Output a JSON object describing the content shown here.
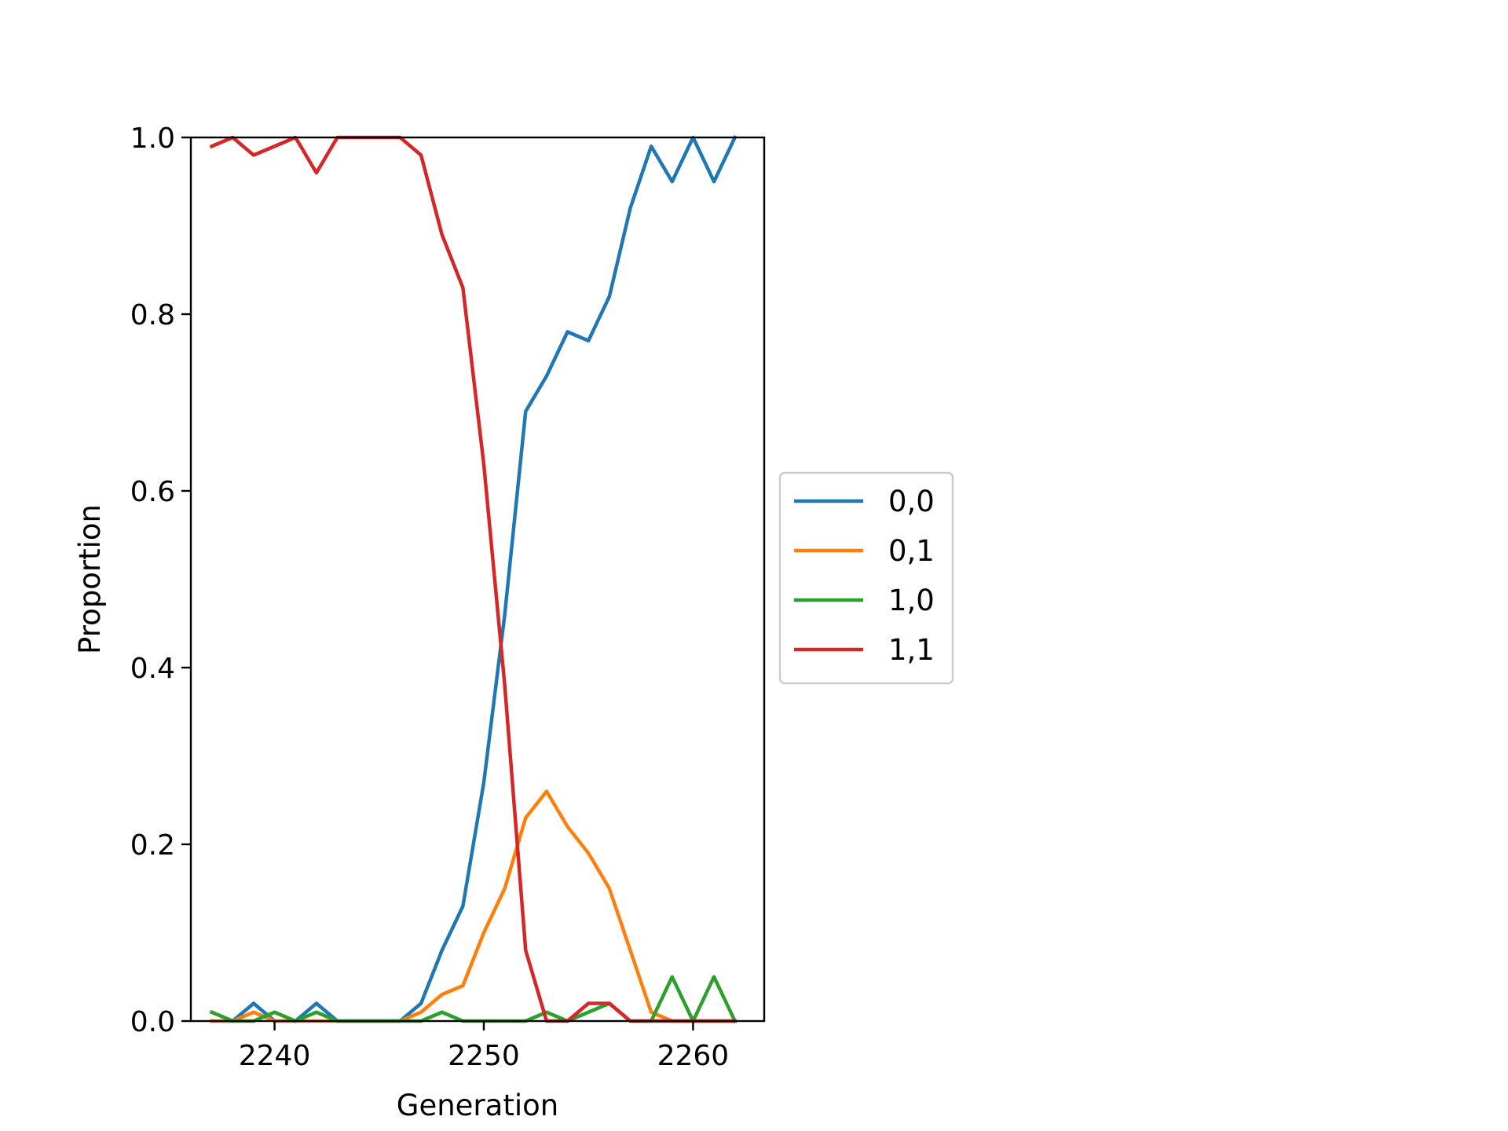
{
  "chart_data": {
    "type": "line",
    "title": "",
    "xlabel": "Generation",
    "ylabel": "Proportion",
    "xlim": [
      2236.0,
      2263.4
    ],
    "ylim": [
      0.0,
      1.0
    ],
    "xticks": [
      2240,
      2250,
      2260
    ],
    "xtick_labels": [
      "2240",
      "2250",
      "2260"
    ],
    "yticks": [
      0.0,
      0.2,
      0.4,
      0.6,
      0.8,
      1.0
    ],
    "ytick_labels": [
      "0.0",
      "0.2",
      "0.4",
      "0.6",
      "0.8",
      "1.0"
    ],
    "grid": false,
    "legend_position": "outside right, vertically centered",
    "x": [
      2237,
      2238,
      2239,
      2240,
      2241,
      2242,
      2243,
      2244,
      2245,
      2246,
      2247,
      2248,
      2249,
      2250,
      2251,
      2252,
      2253,
      2254,
      2255,
      2256,
      2257,
      2258,
      2259,
      2260,
      2261,
      2262
    ],
    "series": [
      {
        "name": "0,0",
        "color": "#1f77b4",
        "values": [
          0.0,
          0.0,
          0.02,
          0.0,
          0.0,
          0.02,
          0.0,
          0.0,
          0.0,
          0.0,
          0.02,
          0.08,
          0.13,
          0.27,
          0.46,
          0.69,
          0.73,
          0.78,
          0.77,
          0.82,
          0.92,
          0.99,
          0.95,
          1.0,
          0.95,
          1.0
        ]
      },
      {
        "name": "0,1",
        "color": "#ff7f0e",
        "values": [
          0.0,
          0.0,
          0.01,
          0.0,
          0.0,
          0.0,
          0.0,
          0.0,
          0.0,
          0.0,
          0.01,
          0.03,
          0.04,
          0.1,
          0.15,
          0.23,
          0.26,
          0.22,
          0.19,
          0.15,
          0.08,
          0.01,
          0.0,
          0.0,
          0.0,
          0.0
        ]
      },
      {
        "name": "1,0",
        "color": "#2ca02c",
        "values": [
          0.01,
          0.0,
          0.0,
          0.01,
          0.0,
          0.01,
          0.0,
          0.0,
          0.0,
          0.0,
          0.0,
          0.01,
          0.0,
          0.0,
          0.0,
          0.0,
          0.01,
          0.0,
          0.01,
          0.02,
          0.0,
          0.0,
          0.05,
          0.0,
          0.05,
          0.0
        ]
      },
      {
        "name": "1,1",
        "color": "#d62728",
        "values": [
          0.99,
          1.0,
          0.98,
          0.99,
          1.0,
          0.96,
          1.0,
          1.0,
          1.0,
          1.0,
          0.98,
          0.89,
          0.83,
          0.63,
          0.38,
          0.08,
          0.0,
          0.0,
          0.02,
          0.02,
          0.0,
          0.0,
          0.0,
          0.0,
          0.0,
          0.0
        ]
      }
    ]
  }
}
